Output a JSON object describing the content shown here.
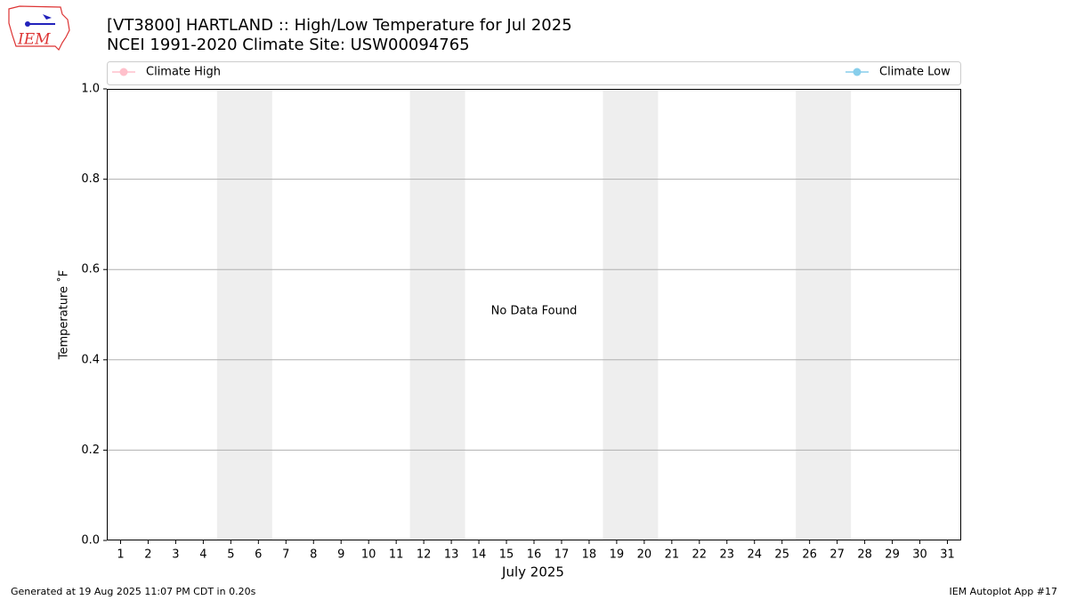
{
  "chart_data": {
    "type": "line",
    "title": "[VT3800] HARTLAND :: High/Low Temperature for Jul 2025",
    "subtitle": "NCEI 1991-2020 Climate Site: USW00094765",
    "logo_text": "IEM",
    "x_label": "July 2025",
    "y_label": "Temperature ˚F",
    "annotation": "No Data Found",
    "footer_left": "Generated at 19 Aug 2025 11:07 PM CDT in 0.20s",
    "footer_right": "IEM Autoplot App #17",
    "x": [
      1,
      2,
      3,
      4,
      5,
      6,
      7,
      8,
      9,
      10,
      11,
      12,
      13,
      14,
      15,
      16,
      17,
      18,
      19,
      20,
      21,
      22,
      23,
      24,
      25,
      26,
      27,
      28,
      29,
      30,
      31
    ],
    "xticks": [
      1,
      2,
      3,
      4,
      5,
      6,
      7,
      8,
      9,
      10,
      11,
      12,
      13,
      14,
      15,
      16,
      17,
      18,
      19,
      20,
      21,
      22,
      23,
      24,
      25,
      26,
      27,
      28,
      29,
      30,
      31
    ],
    "xlim": [
      0.5,
      31.5
    ],
    "ylim": [
      0,
      1
    ],
    "yticks": [
      {
        "value": 0,
        "label": "0.0"
      },
      0.2,
      0.4,
      0.6,
      0.8,
      {
        "value": 1,
        "label": "1.0"
      }
    ],
    "weekend_bands": [
      [
        4.5,
        6.5
      ],
      [
        11.5,
        13.5
      ],
      [
        18.5,
        20.5
      ],
      [
        25.5,
        27.5
      ]
    ],
    "band_color": "#eeeeee",
    "grid": true,
    "series": [
      {
        "name": "Climate High",
        "color": "#ffc0cb",
        "values": [
          null,
          null,
          null,
          null,
          null,
          null,
          null,
          null,
          null,
          null,
          null,
          null,
          null,
          null,
          null,
          null,
          null,
          null,
          null,
          null,
          null,
          null,
          null,
          null,
          null,
          null,
          null,
          null,
          null,
          null,
          null
        ]
      },
      {
        "name": "Climate Low",
        "color": "#87ceeb",
        "values": [
          null,
          null,
          null,
          null,
          null,
          null,
          null,
          null,
          null,
          null,
          null,
          null,
          null,
          null,
          null,
          null,
          null,
          null,
          null,
          null,
          null,
          null,
          null,
          null,
          null,
          null,
          null,
          null,
          null,
          null,
          null
        ]
      }
    ]
  }
}
